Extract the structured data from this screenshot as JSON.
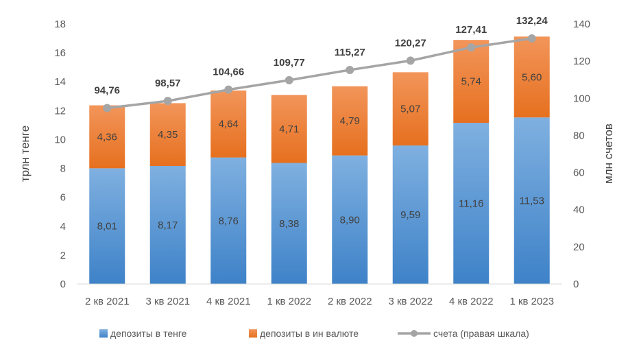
{
  "chart_data": {
    "type": "bar",
    "stacked": true,
    "categories": [
      "2 кв 2021",
      "3 кв 2021",
      "4 кв 2021",
      "1 кв 2022",
      "2 кв 2022",
      "3 кв 2022",
      "4 кв 2022",
      "1 кв 2023"
    ],
    "series": [
      {
        "name": "депозиты в тенге",
        "axis": "left",
        "values": [
          8.01,
          8.17,
          8.76,
          8.38,
          8.9,
          9.59,
          11.16,
          11.53
        ],
        "labels": [
          "8,01",
          "8,17",
          "8,76",
          "8,38",
          "8,90",
          "9,59",
          "11,16",
          "11,53"
        ],
        "color": "#5B9BD5"
      },
      {
        "name": "депозиты в ин валюте",
        "axis": "left",
        "values": [
          4.36,
          4.35,
          4.64,
          4.71,
          4.79,
          5.07,
          5.74,
          5.6
        ],
        "labels": [
          "4,36",
          "4,35",
          "4,64",
          "4,71",
          "4,79",
          "5,07",
          "5,74",
          "5,60"
        ],
        "color": "#ED7D31"
      },
      {
        "name": "счета (правая шкала)",
        "type": "line",
        "axis": "right",
        "values": [
          94.76,
          98.57,
          104.66,
          109.77,
          115.27,
          120.27,
          127.41,
          132.24
        ],
        "labels": [
          "94,76",
          "98,57",
          "104,66",
          "109,77",
          "115,27",
          "120,27",
          "127,41",
          "132,24"
        ],
        "color": "#A5A5A5"
      }
    ],
    "ylabel": "трлн тенге",
    "y2label": "млн счетов",
    "ylim": [
      0,
      18
    ],
    "y2lim": [
      0,
      140
    ],
    "yticks": [
      "0",
      "2",
      "4",
      "6",
      "8",
      "10",
      "12",
      "14",
      "16",
      "18"
    ],
    "y2ticks": [
      "0",
      "20",
      "40",
      "60",
      "80",
      "100",
      "120",
      "140"
    ],
    "grid": false,
    "legend_position": "bottom"
  }
}
